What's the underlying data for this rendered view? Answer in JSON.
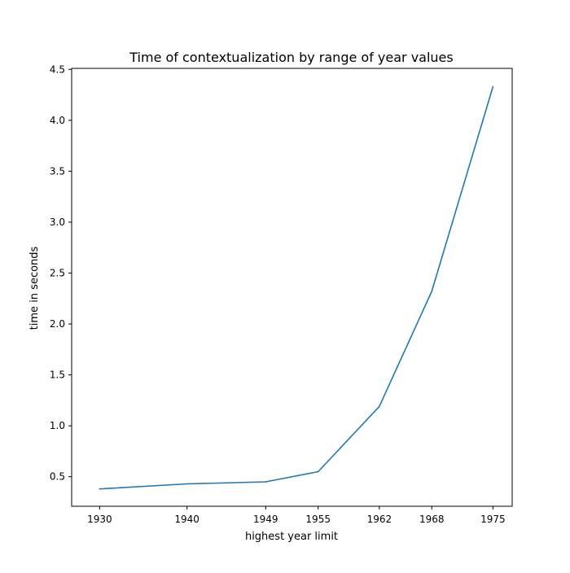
{
  "chart_data": {
    "type": "line",
    "title": "Time of contextualization by range of year values",
    "xlabel": "highest year limit",
    "ylabel": "time in seconds",
    "x": [
      1930,
      1940,
      1949,
      1955,
      1962,
      1968,
      1975
    ],
    "x_tick_labels": [
      "1930",
      "1940",
      "1949",
      "1955",
      "1962",
      "1968",
      "1975"
    ],
    "y_ticks": [
      0.5,
      1.0,
      1.5,
      2.0,
      2.5,
      3.0,
      3.5,
      4.0,
      4.5
    ],
    "y_tick_labels": [
      "0.5",
      "1.0",
      "1.5",
      "2.0",
      "2.5",
      "3.0",
      "3.5",
      "4.0",
      "4.5"
    ],
    "series": [
      {
        "values": [
          0.38,
          0.43,
          0.45,
          0.55,
          1.19,
          2.32,
          4.33
        ],
        "color": "#1f77b4"
      }
    ],
    "xlim": [
      1926.8,
      1977.2
    ],
    "ylim": [
      0.21,
      4.51
    ],
    "grid": false,
    "legend": "none"
  }
}
